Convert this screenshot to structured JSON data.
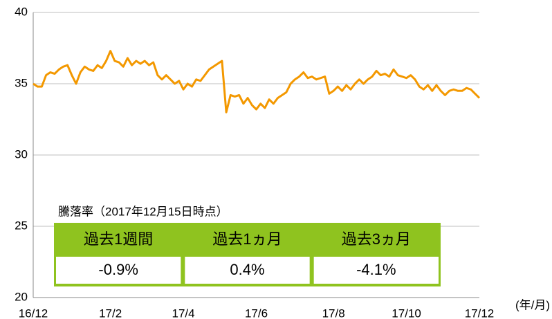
{
  "chart_data": {
    "type": "line",
    "categories": [
      "16/12",
      null,
      null,
      null,
      null,
      null,
      null,
      null,
      null,
      null,
      null,
      null,
      null,
      null,
      null,
      null,
      null,
      null,
      "17/2",
      null,
      null,
      null,
      null,
      null,
      null,
      null,
      null,
      null,
      null,
      null,
      null,
      null,
      null,
      null,
      null,
      "17/4",
      null,
      null,
      null,
      null,
      null,
      null,
      null,
      null,
      null,
      null,
      null,
      null,
      null,
      null,
      null,
      null,
      "17/6",
      null,
      null,
      null,
      null,
      null,
      null,
      null,
      null,
      null,
      null,
      null,
      null,
      null,
      null,
      null,
      null,
      null,
      "17/8",
      null,
      null,
      null,
      null,
      null,
      null,
      null,
      null,
      null,
      null,
      null,
      null,
      null,
      null,
      null,
      null,
      "17/10",
      null,
      null,
      null,
      null,
      null,
      null,
      null,
      null,
      null,
      null,
      null,
      null,
      null,
      null,
      null,
      null,
      "17/12"
    ],
    "series": [
      {
        "color": "#f39800",
        "values": [
          35.0,
          34.8,
          34.8,
          35.6,
          35.8,
          35.7,
          36.0,
          36.2,
          36.3,
          35.6,
          35.0,
          35.8,
          36.2,
          36.0,
          35.9,
          36.3,
          36.1,
          36.6,
          37.3,
          36.6,
          36.5,
          36.2,
          36.8,
          36.3,
          36.6,
          36.4,
          36.6,
          36.3,
          36.5,
          35.6,
          35.3,
          35.6,
          35.3,
          35.0,
          35.2,
          34.6,
          35.0,
          34.8,
          35.3,
          35.2,
          35.6,
          36.0,
          36.2,
          36.4,
          36.6,
          33.0,
          34.2,
          34.1,
          34.2,
          33.6,
          34.0,
          33.5,
          33.2,
          33.6,
          33.3,
          33.9,
          33.6,
          34.0,
          34.2,
          34.4,
          35.0,
          35.3,
          35.5,
          35.8,
          35.4,
          35.5,
          35.3,
          35.4,
          35.5,
          34.3,
          34.5,
          34.8,
          34.5,
          34.9,
          34.6,
          35.0,
          35.3,
          35.0,
          35.3,
          35.5,
          35.9,
          35.6,
          35.7,
          35.5,
          36.0,
          35.6,
          35.5,
          35.4,
          35.6,
          35.3,
          34.8,
          34.6,
          34.9,
          34.5,
          34.9,
          34.5,
          34.2,
          34.5,
          34.6,
          34.5,
          34.5,
          34.7,
          34.6,
          34.3,
          34.0
        ]
      }
    ],
    "x_label": "(年/月)",
    "ylim": [
      20,
      40
    ],
    "yticks": [
      20,
      25,
      30,
      35,
      40
    ],
    "grid": true
  },
  "table": {
    "title": "騰落率（2017年12月15日時点）",
    "headers": [
      "過去1週間",
      "過去1ヵ月",
      "過去3ヵ月"
    ],
    "rows": [
      [
        "-0.9%",
        "0.4%",
        "-4.1%"
      ]
    ]
  }
}
